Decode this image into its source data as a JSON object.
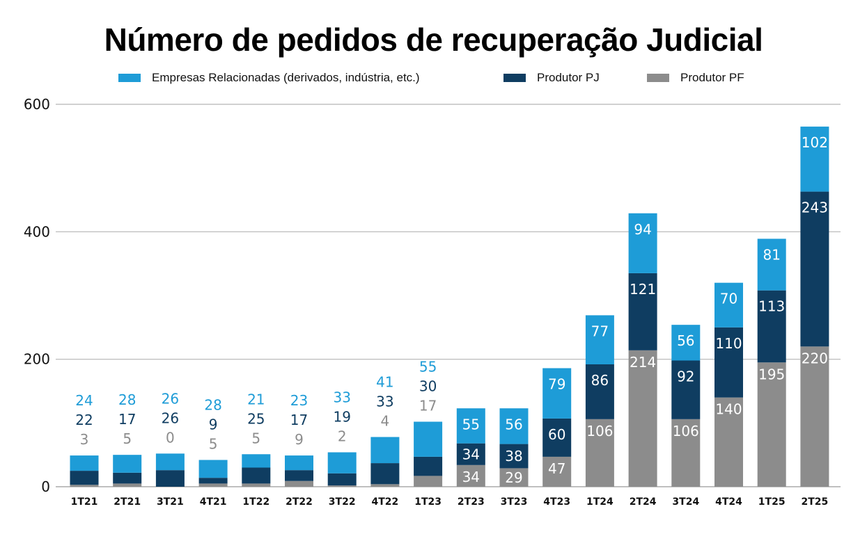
{
  "chart_data": {
    "type": "bar",
    "stacked": true,
    "title": "Número de pedidos de recuperação Judicial",
    "xlabel": "",
    "ylabel": "",
    "ylim": [
      0,
      600
    ],
    "yticks": [
      0,
      200,
      400,
      600
    ],
    "grid": true,
    "legend_position": "top-center",
    "categories": [
      "1T21",
      "2T21",
      "3T21",
      "4T21",
      "1T22",
      "2T22",
      "3T22",
      "4T22",
      "1T23",
      "2T23",
      "3T23",
      "4T23",
      "1T24",
      "2T24",
      "3T24",
      "4T24",
      "1T25",
      "2T25"
    ],
    "series": [
      {
        "name": "Produtor PF",
        "color": "#8c8c8c",
        "values": [
          3,
          5,
          0,
          5,
          5,
          9,
          2,
          4,
          17,
          34,
          29,
          47,
          106,
          214,
          106,
          140,
          195,
          220
        ]
      },
      {
        "name": "Produtor PJ",
        "color": "#0f3d61",
        "values": [
          22,
          17,
          26,
          9,
          25,
          17,
          19,
          33,
          30,
          34,
          38,
          60,
          86,
          121,
          92,
          110,
          113,
          243
        ]
      },
      {
        "name": "Empresas Relacionadas (derivados, indústria, etc.)",
        "color": "#1e9cd7",
        "values": [
          24,
          28,
          26,
          28,
          21,
          23,
          33,
          41,
          55,
          55,
          56,
          79,
          77,
          94,
          56,
          70,
          81,
          102
        ]
      }
    ],
    "legend_order": [
      "Empresas Relacionadas (derivados, indústria, etc.)",
      "Produtor PJ",
      "Produtor PF"
    ],
    "labels_outside_until_index": 8
  }
}
